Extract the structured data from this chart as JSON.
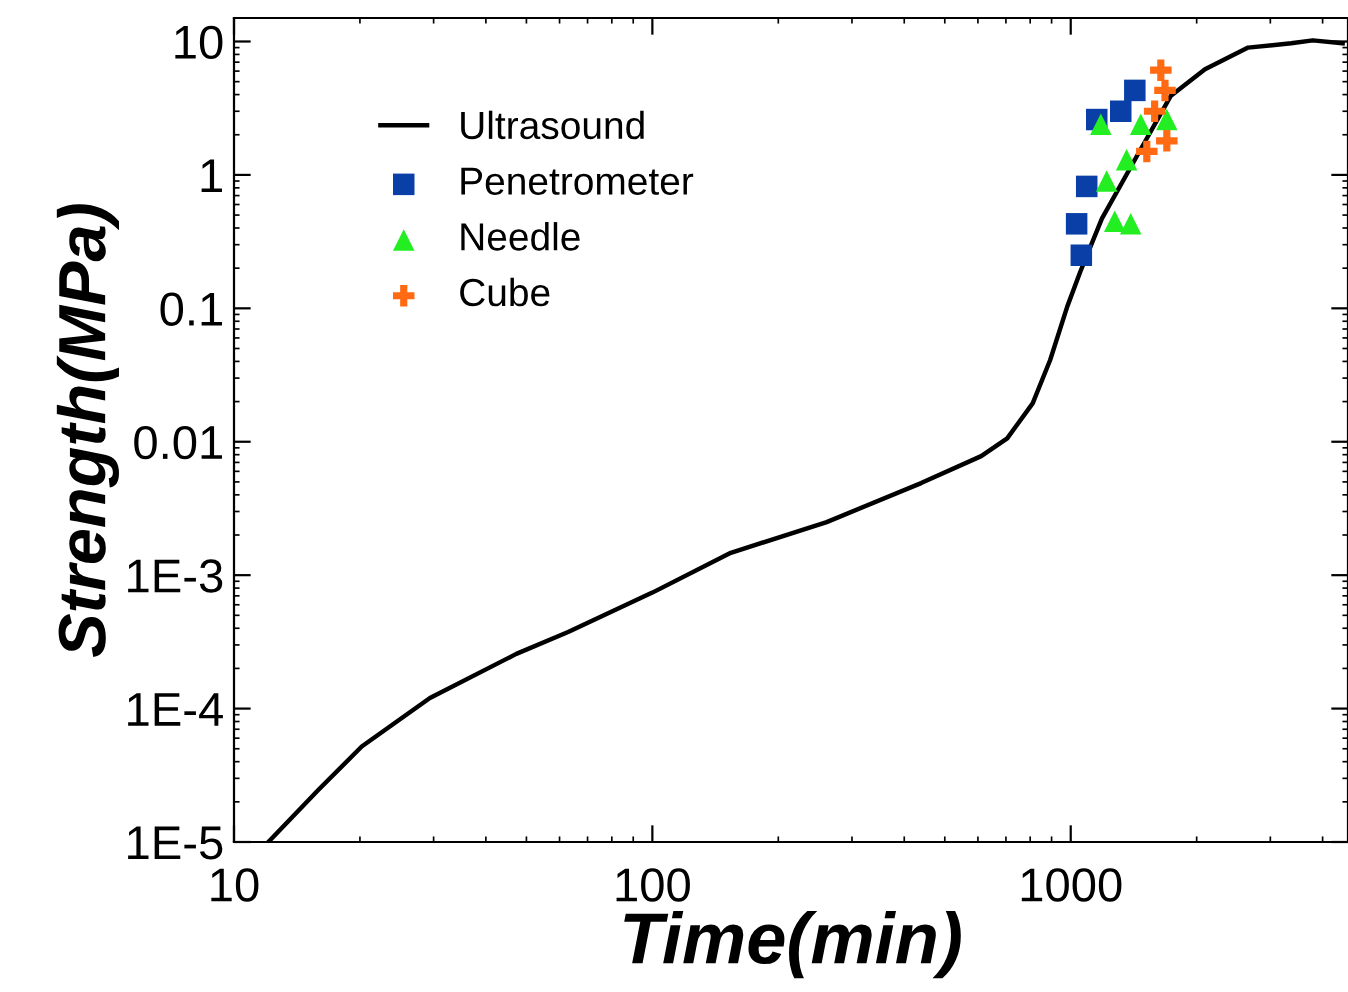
{
  "chart_data": {
    "type": "line",
    "xlabel": "Time(min)",
    "ylabel": "Strength(MPa)",
    "log": "xy",
    "xlim": [
      10,
      4600
    ],
    "ylim": [
      1e-05,
      15
    ],
    "xticks": [
      10,
      100,
      1000
    ],
    "yticks": [
      {
        "value": 1e-05,
        "label": "1E-5"
      },
      {
        "value": 0.0001,
        "label": "1E-4"
      },
      {
        "value": 0.001,
        "label": "1E-3"
      },
      0.01,
      0.1,
      1,
      10
    ],
    "grid": false,
    "legend": "top left",
    "series": [
      {
        "name": "Ultrasound",
        "color": "#000000",
        "marker": "none",
        "x": [
          12.08,
          15.9,
          20.2,
          29.4,
          47.3,
          62.9,
          100,
          154,
          261,
          439,
          611,
          705,
          811,
          893,
          981,
          1054,
          1187,
          1433,
          1733,
          2094,
          2655,
          3365,
          3790,
          4467
        ],
        "values": [
          1e-05,
          2.45e-05,
          5.2e-05,
          0.00012,
          0.000257,
          0.000375,
          0.00074,
          0.00147,
          0.0025,
          0.0049,
          0.0078,
          0.0106,
          0.0194,
          0.041,
          0.103,
          0.188,
          0.47,
          1.35,
          3.9,
          6.2,
          9.0,
          9.7,
          10.2,
          9.7
        ]
      },
      {
        "name": "Penetrometer",
        "type": "scatter",
        "color": "#0b3fa8",
        "marker": "square",
        "x": [
          1033,
          1092,
          1154,
          1317,
          1423,
          1060
        ],
        "values": [
          0.43,
          0.82,
          2.6,
          3.0,
          4.3,
          0.25
        ]
      },
      {
        "name": "Needle",
        "type": "scatter",
        "color": "#22ee22",
        "marker": "triangle",
        "x": [
          1180,
          1274,
          1391,
          1360,
          1470,
          1697,
          1219
        ],
        "values": [
          2.4,
          0.45,
          0.43,
          1.3,
          2.4,
          2.6,
          0.9
        ]
      },
      {
        "name": "Cube",
        "type": "scatter",
        "color": "#ff6a13",
        "marker": "cross",
        "x": [
          1642,
          1680,
          1697,
          1520,
          1587
        ],
        "values": [
          6.1,
          4.3,
          1.8,
          1.5,
          3.0
        ]
      }
    ]
  }
}
